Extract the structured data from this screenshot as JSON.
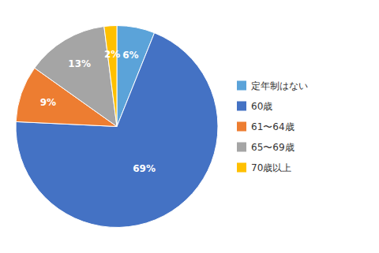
{
  "chart_data": {
    "type": "pie",
    "categories": [
      "定年制はない",
      "60歳",
      "61〜64歳",
      "65〜69歳",
      "70歳以上"
    ],
    "values": [
      6,
      69,
      9,
      13,
      2
    ],
    "value_labels": [
      "6%",
      "69%",
      "9%",
      "13%",
      "2%"
    ],
    "colors": [
      "#5BA3D9",
      "#4472C4",
      "#ED7D31",
      "#A5A5A5",
      "#FFC000"
    ],
    "data_labels": true,
    "legend": "right"
  }
}
